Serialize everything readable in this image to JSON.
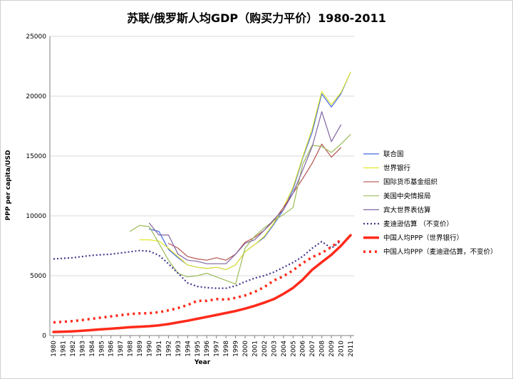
{
  "chart_data": {
    "type": "line",
    "title": "苏联/俄罗斯人均GDP（购买力平价）1980-2011",
    "xlabel": "Year",
    "ylabel": "PPP per capita/USD",
    "ylim": [
      0,
      25000
    ],
    "yticks": [
      0,
      5000,
      10000,
      15000,
      20000,
      25000
    ],
    "categories": [
      "1980",
      "1981",
      "1982",
      "1983",
      "1984",
      "1985",
      "1986",
      "1987",
      "1988",
      "1989",
      "1990",
      "1991",
      "1992",
      "1993",
      "1994",
      "1995",
      "1996",
      "1997",
      "1998",
      "1999",
      "2000",
      "2001",
      "2002",
      "2003",
      "2004",
      "2005",
      "2006",
      "2007",
      "2008",
      "2009",
      "2010",
      "2011"
    ],
    "grid": "horizontal",
    "legend_position": "right",
    "series": [
      {
        "name": "联合国",
        "color": "#4169e1",
        "style": "solid",
        "width": 1.2,
        "values": [
          null,
          null,
          null,
          null,
          null,
          null,
          null,
          null,
          null,
          null,
          8900,
          8700,
          7200,
          6500,
          5900,
          5700,
          5600,
          5700,
          5500,
          5900,
          7000,
          7600,
          8200,
          9300,
          10500,
          12200,
          14800,
          17000,
          20200,
          19100,
          20200,
          22000
        ]
      },
      {
        "name": "世界银行",
        "color": "#e5e82a",
        "style": "solid",
        "width": 1.2,
        "values": [
          null,
          null,
          null,
          null,
          null,
          null,
          null,
          null,
          null,
          8000,
          8000,
          7900,
          7300,
          6600,
          5900,
          5700,
          5600,
          5700,
          5500,
          5900,
          7000,
          7600,
          8300,
          9400,
          10700,
          12400,
          14900,
          17300,
          20400,
          19300,
          20300,
          22000
        ]
      },
      {
        "name": "国际货币基金组织",
        "color": "#b5534e",
        "style": "solid",
        "width": 1.2,
        "values": [
          null,
          null,
          null,
          null,
          null,
          null,
          null,
          null,
          null,
          null,
          null,
          null,
          7700,
          7300,
          6600,
          6400,
          6300,
          6500,
          6300,
          6800,
          7800,
          8200,
          8800,
          9600,
          10700,
          11900,
          13100,
          14400,
          16000,
          14900,
          15700,
          null
        ]
      },
      {
        "name": "美国中央情报局",
        "color": "#9bbb59",
        "style": "solid",
        "width": 1.2,
        "values": [
          null,
          null,
          null,
          null,
          null,
          null,
          null,
          null,
          8700,
          9200,
          9100,
          7700,
          6300,
          5200,
          4900,
          5000,
          5200,
          4900,
          4600,
          4300,
          7300,
          8300,
          9000,
          9600,
          10100,
          10700,
          14300,
          15900,
          15800,
          15300,
          16000,
          16800
        ]
      },
      {
        "name": "宾大世界表估算",
        "color": "#8064a2",
        "style": "solid",
        "width": 1.2,
        "values": [
          null,
          null,
          null,
          null,
          null,
          null,
          null,
          null,
          null,
          null,
          9400,
          8400,
          8400,
          6800,
          6300,
          6200,
          6000,
          6000,
          6000,
          6800,
          7700,
          8000,
          8800,
          9700,
          10500,
          11900,
          13800,
          15800,
          18700,
          16200,
          17600,
          null
        ]
      },
      {
        "name": "麦迪逊估算    （不变价）",
        "color": "#403a8f",
        "style": "dotted",
        "width": 2.2,
        "values": [
          6400,
          6450,
          6500,
          6600,
          6700,
          6750,
          6800,
          6900,
          7000,
          7100,
          7050,
          6700,
          6000,
          5200,
          4400,
          4100,
          4000,
          3950,
          3950,
          4150,
          4500,
          4800,
          5000,
          5300,
          5700,
          6100,
          6600,
          7300,
          7850,
          7300,
          7900,
          null
        ]
      },
      {
        "name": "中国人均PPP（世界银行）",
        "color": "#ff2a1a",
        "style": "solid",
        "width": 3.5,
        "values": [
          300,
          320,
          350,
          400,
          460,
          520,
          570,
          630,
          700,
          740,
          780,
          850,
          960,
          1100,
          1240,
          1400,
          1560,
          1720,
          1880,
          2050,
          2250,
          2480,
          2750,
          3050,
          3480,
          3980,
          4660,
          5500,
          6130,
          6750,
          7500,
          8380
        ]
      },
      {
        "name": "中国人均PPP（麦迪逊估算，不变价）",
        "color": "#ff2a1a",
        "style": "dotted",
        "width": 3.5,
        "values": [
          1100,
          1150,
          1200,
          1300,
          1400,
          1500,
          1600,
          1700,
          1800,
          1850,
          1870,
          1950,
          2100,
          2300,
          2550,
          2900,
          2900,
          3050,
          3000,
          3150,
          3350,
          3650,
          4050,
          4600,
          4950,
          5450,
          6050,
          6550,
          6900,
          7400,
          8000,
          null
        ]
      }
    ]
  }
}
